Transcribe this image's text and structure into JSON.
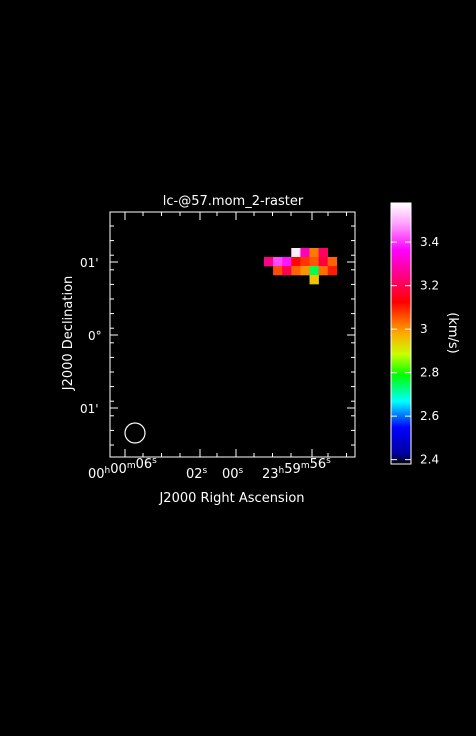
{
  "chart_data": {
    "type": "heatmap",
    "title": "lc-@57.mom_2-raster",
    "xlabel": "J2000 Right Ascension",
    "ylabel": "J2000 Declination",
    "x_ticks": [
      {
        "main": "00",
        "sup": [
          "h",
          "m",
          "s"
        ],
        "parts": [
          "00",
          "00",
          "06"
        ]
      },
      {
        "main": "02",
        "sup": [
          "s"
        ],
        "parts": [
          "02"
        ]
      },
      {
        "main": "00",
        "sup": [
          "s"
        ],
        "parts": [
          "00"
        ]
      },
      {
        "main": "23",
        "sup": [
          "h",
          "m",
          "s"
        ],
        "parts": [
          "23",
          "59",
          "56"
        ]
      }
    ],
    "y_ticks": [
      "01'",
      "0°",
      "01'"
    ],
    "colorbar": {
      "label": "(km/s)",
      "range": [
        2.38,
        3.58
      ],
      "ticks": [
        2.4,
        2.6,
        2.8,
        3.0,
        3.2,
        3.4
      ],
      "tick_labels": [
        "2.4",
        "2.6",
        "2.8",
        "3",
        "3.2",
        "3.4"
      ]
    },
    "pixels": [
      {
        "col": 0,
        "row": 1,
        "value": 3.25
      },
      {
        "col": 1,
        "row": 1,
        "value": 3.42
      },
      {
        "col": 2,
        "row": 1,
        "value": 3.38
      },
      {
        "col": 3,
        "row": 0,
        "value": 3.56
      },
      {
        "col": 3,
        "row": 1,
        "value": 3.12
      },
      {
        "col": 4,
        "row": 0,
        "value": 3.3
      },
      {
        "col": 4,
        "row": 1,
        "value": 3.08
      },
      {
        "col": 5,
        "row": 0,
        "value": 3.02
      },
      {
        "col": 5,
        "row": 1,
        "value": 3.05
      },
      {
        "col": 6,
        "row": 0,
        "value": 3.22
      },
      {
        "col": 6,
        "row": 1,
        "value": 3.18
      },
      {
        "col": 1,
        "row": 2,
        "value": 3.06
      },
      {
        "col": 2,
        "row": 2,
        "value": 3.2
      },
      {
        "col": 3,
        "row": 2,
        "value": 3.04
      },
      {
        "col": 4,
        "row": 2,
        "value": 3.0
      },
      {
        "col": 5,
        "row": 2,
        "value": 2.75
      },
      {
        "col": 6,
        "row": 2,
        "value": 3.03
      },
      {
        "col": 7,
        "row": 1,
        "value": 3.04
      },
      {
        "col": 7,
        "row": 2,
        "value": 3.1
      },
      {
        "col": 5,
        "row": 3,
        "value": 2.95
      }
    ],
    "beam": "circle"
  }
}
